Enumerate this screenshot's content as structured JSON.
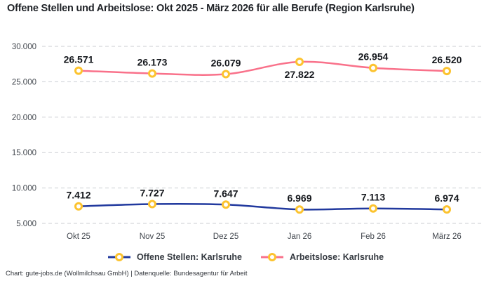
{
  "title": "Offene Stellen und Arbeitslose: Okt 2025 - März 2026 für alle Berufe (Region Karlsruhe)",
  "footer": "Chart: gute-jobs.de (Wollmilchsau GmbH) | Datenquelle: Bundesagentur für Arbeit",
  "chart_data": {
    "type": "line",
    "title": "Offene Stellen und Arbeitslose: Okt 2025 - März 2026 für alle Berufe (Region Karlsruhe)",
    "categories": [
      "Okt 25",
      "Nov 25",
      "Dez 25",
      "Jan 26",
      "Feb 26",
      "März 26"
    ],
    "series": [
      {
        "name": "Offene Stellen: Karlsruhe",
        "color": "#21399e",
        "values": [
          7412,
          7727,
          7647,
          6969,
          7113,
          6974
        ],
        "value_labels": [
          "7.412",
          "7.727",
          "7.647",
          "6.969",
          "7.113",
          "6.974"
        ],
        "label_below": [
          false,
          false,
          false,
          false,
          false,
          false
        ]
      },
      {
        "name": "Arbeitslose: Karlsruhe",
        "color": "#f9718a",
        "values": [
          26571,
          26173,
          26079,
          27822,
          26954,
          26520
        ],
        "value_labels": [
          "26.571",
          "26.173",
          "26.079",
          "27.822",
          "26.954",
          "26.520"
        ],
        "label_below": [
          false,
          false,
          false,
          true,
          false,
          false
        ]
      }
    ],
    "marker": {
      "fill": "#ffffff",
      "stroke": "#fcc32f"
    },
    "xlabel": "",
    "ylabel": "",
    "ylim": [
      5000,
      30000
    ],
    "yticks": [
      5000,
      10000,
      15000,
      20000,
      25000,
      30000
    ],
    "ytick_labels": [
      "5.000",
      "10.000",
      "15.000",
      "20.000",
      "25.000",
      "30.000"
    ],
    "grid": {
      "horizontal": true,
      "vertical": false,
      "color": "#cbced2",
      "style": "dashed"
    },
    "legend_position": "bottom"
  }
}
